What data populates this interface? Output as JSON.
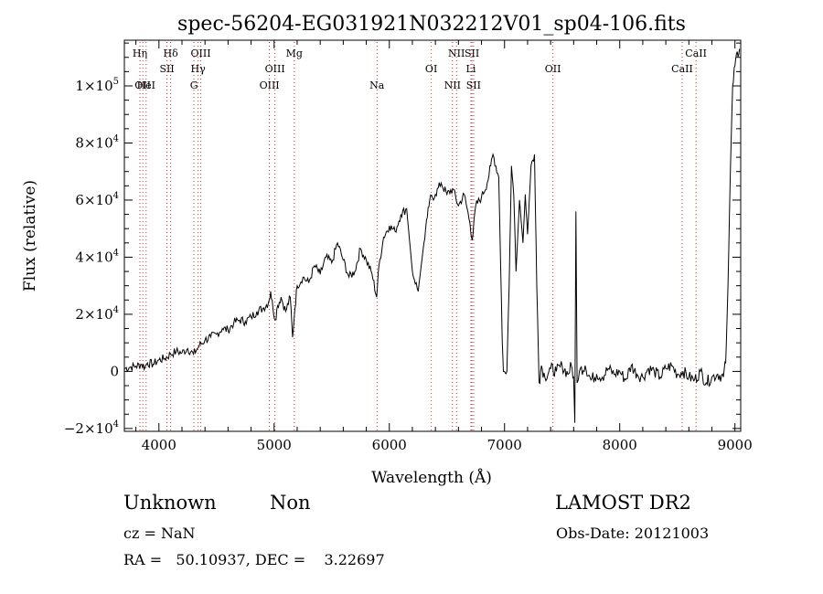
{
  "chart_data": {
    "type": "line",
    "title": "spec-56204-EG031921N032212V01_sp04-106.fits",
    "xlabel": "Wavelength (Å)",
    "ylabel": "Flux (relative)",
    "xlim": [
      3700,
      9050
    ],
    "ylim": [
      -21000,
      116000
    ],
    "grid": false,
    "legend": "none",
    "x_ticks": [
      {
        "value": 4000,
        "label": "4000"
      },
      {
        "value": 5000,
        "label": "5000"
      },
      {
        "value": 6000,
        "label": "6000"
      },
      {
        "value": 7000,
        "label": "7000"
      },
      {
        "value": 8000,
        "label": "8000"
      },
      {
        "value": 9000,
        "label": "9000"
      }
    ],
    "y_ticks": [
      {
        "value": -20000,
        "mant": "−2×10",
        "exp": "4"
      },
      {
        "value": 0,
        "mant": "0",
        "exp": ""
      },
      {
        "value": 20000,
        "mant": "2×10",
        "exp": "4"
      },
      {
        "value": 40000,
        "mant": "4×10",
        "exp": "4"
      },
      {
        "value": 60000,
        "mant": "6×10",
        "exp": "4"
      },
      {
        "value": 80000,
        "mant": "8×10",
        "exp": "4"
      },
      {
        "value": 100000,
        "mant": "1×10",
        "exp": "5"
      }
    ],
    "lines": [
      {
        "x": 3835,
        "label": "Hη",
        "row": 0
      },
      {
        "x": 3889,
        "label": "HeI",
        "row": 2
      },
      {
        "x": 3860,
        "label": "OII",
        "row": 2
      },
      {
        "x": 4070,
        "label": "SII",
        "row": 1
      },
      {
        "x": 4102,
        "label": "Hδ",
        "row": 0
      },
      {
        "x": 4304,
        "label": "G",
        "row": 2
      },
      {
        "x": 4340,
        "label": "Hγ",
        "row": 1
      },
      {
        "x": 4363,
        "label": "OIII",
        "row": 0
      },
      {
        "x": 4959,
        "label": "OIII",
        "row": 2
      },
      {
        "x": 5007,
        "label": "OIII",
        "row": 1
      },
      {
        "x": 5175,
        "label": "Mg",
        "row": 0
      },
      {
        "x": 5893,
        "label": "Na",
        "row": 2
      },
      {
        "x": 6364,
        "label": "OI",
        "row": 1
      },
      {
        "x": 6548,
        "label": "NII",
        "row": 2
      },
      {
        "x": 6583,
        "label": "NII",
        "row": 0
      },
      {
        "x": 6708,
        "label": "Li",
        "row": 1
      },
      {
        "x": 6717,
        "label": "SII",
        "row": 0
      },
      {
        "x": 6731,
        "label": "SII",
        "row": 2
      },
      {
        "x": 7420,
        "label": "OII",
        "row": 1
      },
      {
        "x": 8542,
        "label": "CaII",
        "row": 1
      },
      {
        "x": 8662,
        "label": "CaII",
        "row": 0
      }
    ],
    "series": [
      {
        "color": "#000000",
        "x": [
          3700,
          3750,
          3800,
          3850,
          3880,
          3900,
          3950,
          4000,
          4050,
          4100,
          4150,
          4200,
          4250,
          4300,
          4350,
          4400,
          4450,
          4500,
          4550,
          4600,
          4650,
          4700,
          4750,
          4800,
          4850,
          4900,
          4950,
          4970,
          4990,
          5010,
          5030,
          5060,
          5100,
          5140,
          5160,
          5180,
          5200,
          5250,
          5300,
          5350,
          5400,
          5450,
          5500,
          5550,
          5600,
          5650,
          5700,
          5750,
          5800,
          5850,
          5890,
          5910,
          5950,
          6000,
          6050,
          6100,
          6150,
          6200,
          6250,
          6300,
          6330,
          6350,
          6400,
          6450,
          6500,
          6550,
          6600,
          6650,
          6700,
          6720,
          6750,
          6800,
          6850,
          6880,
          6900,
          6950,
          6980,
          6990,
          7000,
          7020,
          7040,
          7060,
          7080,
          7100,
          7130,
          7160,
          7180,
          7200,
          7230,
          7260,
          7280,
          7300,
          7320,
          7350,
          7400,
          7450,
          7500,
          7550,
          7580,
          7600,
          7610,
          7620,
          7630,
          7640,
          7650,
          7700,
          7750,
          7800,
          7850,
          7900,
          7950,
          8000,
          8050,
          8100,
          8150,
          8200,
          8250,
          8300,
          8350,
          8400,
          8450,
          8500,
          8550,
          8600,
          8650,
          8700,
          8750,
          8800,
          8850,
          8900,
          8920,
          8940,
          8960,
          8980,
          9000,
          9020,
          9040
        ],
        "y": [
          1000,
          1500,
          1800,
          2500,
          1500,
          3000,
          2500,
          4000,
          4500,
          6000,
          7000,
          6500,
          8000,
          6000,
          9000,
          11000,
          12000,
          13000,
          15000,
          14500,
          17000,
          18000,
          17500,
          19000,
          21000,
          22000,
          24000,
          28000,
          22000,
          18000,
          23000,
          26000,
          21000,
          26000,
          12000,
          22000,
          30000,
          33000,
          31000,
          37000,
          34000,
          40000,
          38000,
          45000,
          39000,
          33000,
          35000,
          43000,
          39000,
          34000,
          26000,
          37000,
          47000,
          51000,
          49000,
          55000,
          57000,
          35000,
          28000,
          45000,
          54000,
          60000,
          62000,
          66000,
          62000,
          64000,
          58000,
          62000,
          52000,
          46000,
          58000,
          61000,
          66000,
          72000,
          76000,
          68000,
          11000,
          0,
          0,
          0,
          30000,
          72000,
          62000,
          35000,
          60000,
          45000,
          62000,
          48000,
          72000,
          76000,
          30000,
          -4000,
          2000,
          -2000,
          1000,
          0,
          2000,
          -1000,
          2000,
          -2000,
          -18000,
          56000,
          -4000,
          -3000,
          0,
          2000,
          -3000,
          -1000,
          -2000,
          1000,
          -1000,
          0,
          -3000,
          2000,
          -1000,
          -2000,
          1000,
          0,
          -2000,
          1000,
          2000,
          -1000,
          0,
          -2000,
          -3000,
          0,
          -4000,
          -2000,
          -1000,
          -2000,
          3000,
          30000,
          70000,
          100000,
          107000,
          112000,
          113000
        ]
      }
    ]
  },
  "info": {
    "object_class": "Unknown",
    "subclass": "Non",
    "survey": "LAMOST DR2",
    "cz": "cz = NaN",
    "obs_date": "Obs-Date: 20121003",
    "coords": "RA =   50.10937, DEC =    3.22697"
  }
}
